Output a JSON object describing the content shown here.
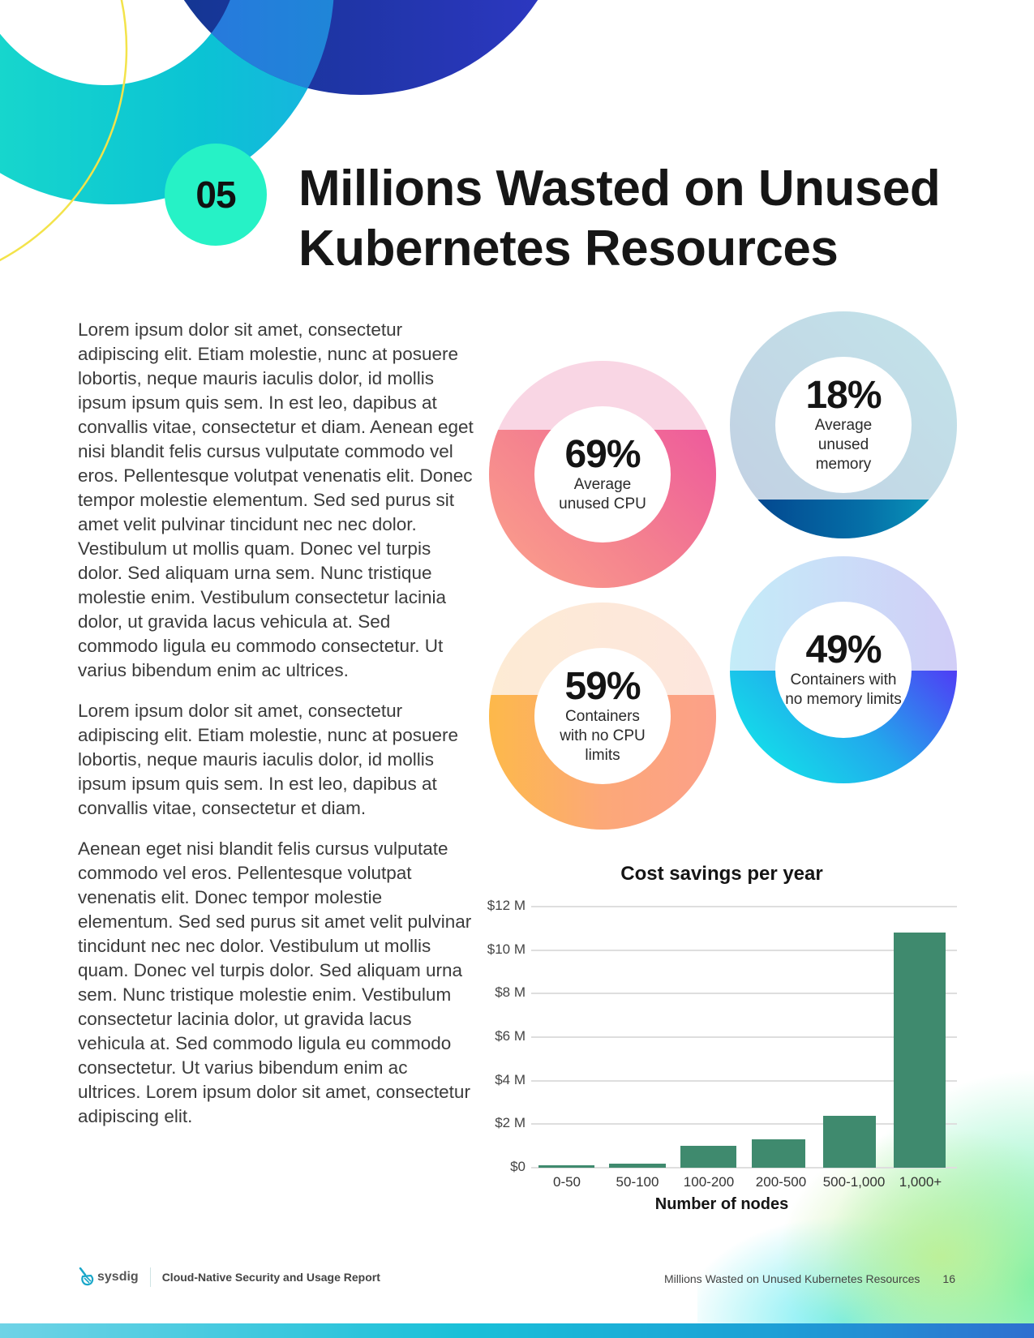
{
  "section": {
    "number": "05",
    "title_line1": "Millions Wasted on Unused",
    "title_line2": "Kubernetes Resources"
  },
  "body": {
    "paragraphs": [
      "Lorem ipsum dolor sit amet, consectetur adipiscing elit. Etiam molestie, nunc at posuere lobortis, neque mauris iaculis dolor, id mollis ipsum ipsum quis sem. In est leo, dapibus at convallis vitae, consectetur et diam. Aenean eget nisi blandit felis cursus vulputate commodo vel eros. Pellentesque volutpat venenatis elit. Donec tempor molestie elementum. Sed sed purus sit amet velit pulvinar tincidunt nec nec dolor. Vestibulum ut mollis quam. Donec vel turpis dolor. Sed aliquam urna sem. Nunc tristique molestie enim. Vestibulum consectetur lacinia dolor, ut gravida lacus vehicula at. Sed commodo ligula eu commodo consectetur. Ut varius bibendum enim ac ultrices.",
      "Lorem ipsum dolor sit amet, consectetur adipiscing elit. Etiam molestie, nunc at posuere lobortis, neque mauris iaculis dolor, id mollis ipsum ipsum quis sem. In est leo, dapibus at convallis vitae, consectetur et diam.",
      "Aenean eget nisi blandit felis cursus vulputate commodo vel eros. Pellentesque volutpat venenatis elit. Donec tempor molestie elementum. Sed sed purus sit amet velit pulvinar tincidunt nec nec dolor. Vestibulum ut mollis quam. Donec vel turpis dolor. Sed aliquam urna sem. Nunc tristique molestie enim. Vestibulum consectetur lacinia dolor, ut gravida lacus vehicula at. Sed commodo ligula eu commodo consectetur. Ut varius bibendum enim ac ultrices. Lorem ipsum dolor sit amet, consectetur adipiscing elit."
    ]
  },
  "stats": [
    {
      "value": "69%",
      "label": "Average unused CPU",
      "percent": 69,
      "light": "#f9d6e4",
      "dark_from": "#fca38a",
      "dark_to": "#ee5a9c"
    },
    {
      "value": "18%",
      "label": "Average unused memory",
      "percent": 18,
      "light": "#c3dfe8",
      "dark_from": "#023e8a",
      "dark_to": "#0aa2c0"
    },
    {
      "value": "59%",
      "label": "Containers with no CPU limits",
      "percent": 59,
      "light": "#fde8d9",
      "dark_from": "#fdb94a",
      "dark_to": "#fca089"
    },
    {
      "value": "49%",
      "label": "Containers with no memory limits",
      "percent": 49,
      "light": "#cfe0f8",
      "dark_from": "#0ef2e8",
      "dark_to": "#4f3cf5"
    }
  ],
  "chart_data": {
    "type": "bar",
    "title": "Cost savings per year",
    "xlabel": "Number of nodes",
    "ylabel": "",
    "categories": [
      "0-50",
      "50-100",
      "100-200",
      "200-500",
      "500-1,000",
      "1,000+"
    ],
    "values": [
      0.1,
      0.2,
      1.0,
      1.3,
      2.4,
      10.8
    ],
    "value_unit": "$M",
    "ylim": [
      0,
      12
    ],
    "yticks": [
      "$0",
      "$2 M",
      "$4 M",
      "$6 M",
      "$8 M",
      "$10 M",
      "$12 M"
    ],
    "grid": true,
    "bar_color": "#3f8a6e"
  },
  "footer": {
    "brand": "sysdig",
    "report_name": "Cloud-Native Security and Usage Report",
    "section_name": "Millions Wasted on Unused Kubernetes Resources",
    "page_number": "16"
  }
}
